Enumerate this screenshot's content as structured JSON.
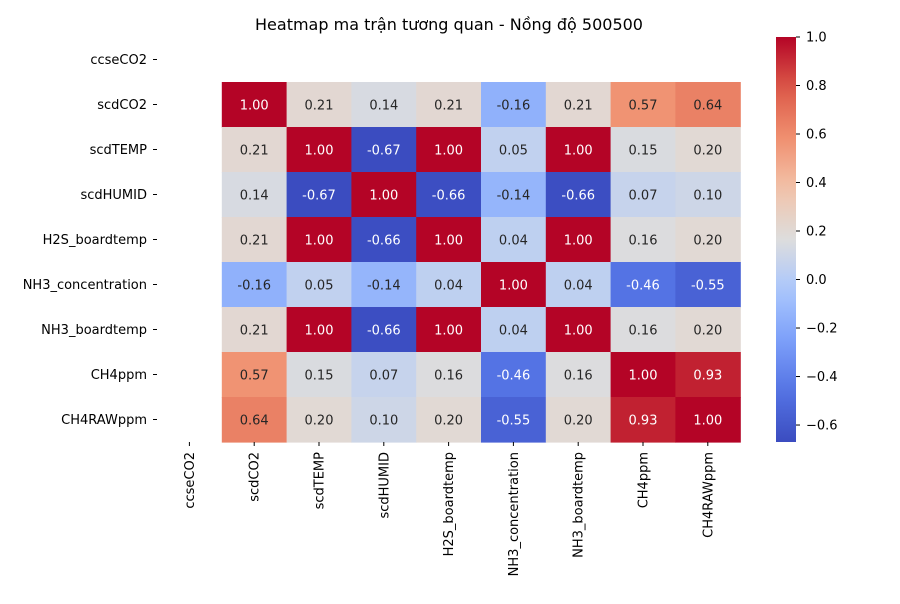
{
  "chart_data": {
    "type": "heatmap",
    "title": "Heatmap ma trận tương quan - Nồng độ 500500",
    "xlabel": "",
    "ylabel": "",
    "rows": [
      "ccseCO2",
      "scdCO2",
      "scdTEMP",
      "scdHUMID",
      "H2S_boardtemp",
      "NH3_concentration",
      "NH3_boardtemp",
      "CH4ppm",
      "CH4RAWppm"
    ],
    "columns": [
      "ccseCO2",
      "scdCO2",
      "scdTEMP",
      "scdHUMID",
      "H2S_boardtemp",
      "NH3_concentration",
      "NH3_boardtemp",
      "CH4ppm",
      "CH4RAWppm"
    ],
    "values": [
      [
        null,
        null,
        null,
        null,
        null,
        null,
        null,
        null,
        null
      ],
      [
        null,
        1.0,
        0.21,
        0.14,
        0.21,
        -0.16,
        0.21,
        0.57,
        0.64
      ],
      [
        null,
        0.21,
        1.0,
        -0.67,
        1.0,
        0.05,
        1.0,
        0.15,
        0.2
      ],
      [
        null,
        0.14,
        -0.67,
        1.0,
        -0.66,
        -0.14,
        -0.66,
        0.07,
        0.1
      ],
      [
        null,
        0.21,
        1.0,
        -0.66,
        1.0,
        0.04,
        1.0,
        0.16,
        0.2
      ],
      [
        null,
        -0.16,
        0.05,
        -0.14,
        0.04,
        1.0,
        0.04,
        -0.46,
        -0.55
      ],
      [
        null,
        0.21,
        1.0,
        -0.66,
        1.0,
        0.04,
        1.0,
        0.16,
        0.2
      ],
      [
        null,
        0.57,
        0.15,
        0.07,
        0.16,
        -0.46,
        0.16,
        1.0,
        0.93
      ],
      [
        null,
        0.64,
        0.2,
        0.1,
        0.2,
        -0.55,
        0.2,
        0.93,
        1.0
      ]
    ],
    "value_format": "0.00",
    "colormap": "coolwarm",
    "vmin": -0.67,
    "vmax": 1.0,
    "colorbar": {
      "ticks": [
        1.0,
        0.8,
        0.6,
        0.4,
        0.2,
        0.0,
        -0.2,
        -0.4,
        -0.6
      ],
      "tick_labels": [
        "1.0",
        "0.8",
        "0.6",
        "0.4",
        "0.2",
        "0.0",
        "−0.2",
        "−0.4",
        "−0.6"
      ]
    },
    "grid": false,
    "legend": "colorbar-right"
  }
}
